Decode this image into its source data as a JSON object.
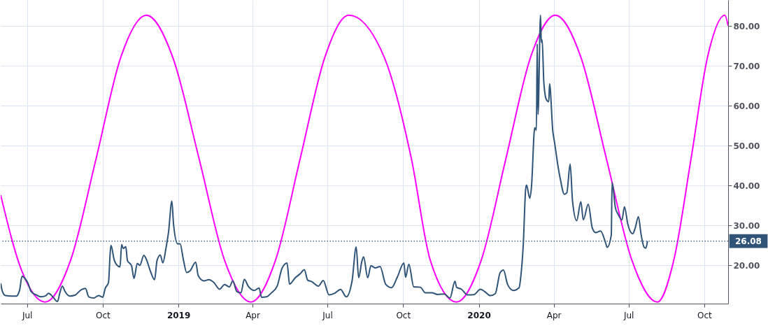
{
  "chart_data": {
    "type": "line",
    "grid": true,
    "xlim": [
      "2018-05-30",
      "2020-10-30"
    ],
    "xticks": [
      {
        "value": "2018-07-01",
        "label": "Jul"
      },
      {
        "value": "2018-10-01",
        "label": "Oct"
      },
      {
        "value": "2019-01-01",
        "label": "2019"
      },
      {
        "value": "2019-04-01",
        "label": "Apr"
      },
      {
        "value": "2019-07-01",
        "label": "Jul"
      },
      {
        "value": "2019-10-01",
        "label": "Oct"
      },
      {
        "value": "2020-01-01",
        "label": "2020"
      },
      {
        "value": "2020-04-01",
        "label": "Apr"
      },
      {
        "value": "2020-07-01",
        "label": "Jul"
      },
      {
        "value": "2020-10-01",
        "label": "Oct"
      }
    ],
    "ylim": [
      10.4,
      86.5
    ],
    "yticks": [
      {
        "value": 20,
        "label": "20.00"
      },
      {
        "value": 30,
        "label": "30.00"
      },
      {
        "value": 40,
        "label": "40.00"
      },
      {
        "value": 50,
        "label": "50.00"
      },
      {
        "value": 60,
        "label": "60.00"
      },
      {
        "value": 70,
        "label": "70.00"
      },
      {
        "value": 80,
        "label": "80.00"
      }
    ],
    "ref_lines": [
      {
        "axis": "y",
        "value": 26.08,
        "label": "26.08",
        "color": "#2f5478",
        "line_style": "dotted"
      }
    ],
    "series": [
      {
        "color": "#ff00ff",
        "x": [
          "2018-05-30",
          "2018-06-25",
          "2018-07-23",
          "2018-08-23",
          "2018-09-23",
          "2018-10-23",
          "2018-11-23",
          "2018-12-25",
          "2019-01-26",
          "2019-02-26",
          "2019-03-30",
          "2019-04-29",
          "2019-05-29",
          "2019-06-28",
          "2019-07-27",
          "2019-09-08",
          "2019-10-11",
          "2019-11-03",
          "2019-12-05",
          "2020-01-04",
          "2020-02-03",
          "2020-03-04",
          "2020-04-03",
          "2020-05-04",
          "2020-06-04",
          "2020-07-05",
          "2020-08-05",
          "2020-08-25",
          "2020-09-15",
          "2020-10-05",
          "2020-10-26",
          "2020-10-30"
        ],
        "values": [
          37.6,
          18.4,
          10.8,
          21.3,
          46.8,
          72.2,
          82.7,
          72.2,
          46.8,
          21.3,
          10.8,
          21.3,
          46.8,
          72.2,
          82.7,
          72.2,
          46.8,
          21.3,
          10.8,
          21.3,
          46.8,
          72.2,
          82.7,
          72.2,
          46.8,
          21.3,
          10.8,
          21.3,
          46.8,
          72.2,
          82.7,
          80.0
        ]
      },
      {
        "color": "#2f5478",
        "x": [
          "2018-05-30",
          "2018-06-01",
          "2018-06-05",
          "2018-06-12",
          "2018-06-18",
          "2018-06-22",
          "2018-06-25",
          "2018-06-28",
          "2018-07-02",
          "2018-07-06",
          "2018-07-12",
          "2018-07-18",
          "2018-07-24",
          "2018-07-27",
          "2018-08-01",
          "2018-08-07",
          "2018-08-10",
          "2018-08-13",
          "2018-08-16",
          "2018-08-22",
          "2018-08-28",
          "2018-09-05",
          "2018-09-10",
          "2018-09-14",
          "2018-09-20",
          "2018-09-26",
          "2018-10-01",
          "2018-10-04",
          "2018-10-08",
          "2018-10-10",
          "2018-10-11",
          "2018-10-15",
          "2018-10-18",
          "2018-10-22",
          "2018-10-24",
          "2018-10-26",
          "2018-10-29",
          "2018-10-31",
          "2018-11-05",
          "2018-11-08",
          "2018-11-12",
          "2018-11-15",
          "2018-11-20",
          "2018-11-23",
          "2018-11-28",
          "2018-12-03",
          "2018-12-06",
          "2018-12-10",
          "2018-12-13",
          "2018-12-17",
          "2018-12-20",
          "2018-12-24",
          "2018-12-26",
          "2018-12-31",
          "2019-01-03",
          "2019-01-07",
          "2019-01-11",
          "2019-01-15",
          "2019-01-22",
          "2019-01-25",
          "2019-02-01",
          "2019-02-07",
          "2019-02-13",
          "2019-02-20",
          "2019-02-26",
          "2019-03-04",
          "2019-03-08",
          "2019-03-13",
          "2019-03-18",
          "2019-03-22",
          "2019-03-27",
          "2019-04-03",
          "2019-04-09",
          "2019-04-12",
          "2019-04-18",
          "2019-04-24",
          "2019-05-01",
          "2019-05-07",
          "2019-05-13",
          "2019-05-16",
          "2019-05-23",
          "2019-05-29",
          "2019-06-03",
          "2019-06-07",
          "2019-06-12",
          "2019-06-20",
          "2019-06-26",
          "2019-07-03",
          "2019-07-10",
          "2019-07-17",
          "2019-07-24",
          "2019-07-31",
          "2019-08-05",
          "2019-08-08",
          "2019-08-12",
          "2019-08-14",
          "2019-08-19",
          "2019-08-23",
          "2019-08-28",
          "2019-09-03",
          "2019-09-10",
          "2019-09-17",
          "2019-09-24",
          "2019-10-02",
          "2019-10-04",
          "2019-10-08",
          "2019-10-14",
          "2019-10-22",
          "2019-10-28",
          "2019-11-05",
          "2019-11-12",
          "2019-11-20",
          "2019-11-27",
          "2019-12-03",
          "2019-12-05",
          "2019-12-11",
          "2019-12-18",
          "2019-12-26",
          "2020-01-03",
          "2020-01-08",
          "2020-01-15",
          "2020-01-21",
          "2020-01-27",
          "2020-01-31",
          "2020-02-05",
          "2020-02-12",
          "2020-02-19",
          "2020-02-21",
          "2020-02-24",
          "2020-02-27",
          "2020-02-28",
          "2020-03-03",
          "2020-03-05",
          "2020-03-09",
          "2020-03-11",
          "2020-03-12",
          "2020-03-13",
          "2020-03-16",
          "2020-03-17",
          "2020-03-18",
          "2020-03-20",
          "2020-03-23",
          "2020-03-26",
          "2020-03-27",
          "2020-03-31",
          "2020-04-02",
          "2020-04-06",
          "2020-04-09",
          "2020-04-14",
          "2020-04-17",
          "2020-04-21",
          "2020-04-24",
          "2020-04-29",
          "2020-05-04",
          "2020-05-07",
          "2020-05-13",
          "2020-05-18",
          "2020-05-22",
          "2020-05-28",
          "2020-06-03",
          "2020-06-05",
          "2020-06-10",
          "2020-06-11",
          "2020-06-15",
          "2020-06-18",
          "2020-06-23",
          "2020-06-26",
          "2020-06-30",
          "2020-07-06",
          "2020-07-09",
          "2020-07-13",
          "2020-07-16",
          "2020-07-20",
          "2020-07-22",
          "2020-07-24"
        ],
        "values": [
          15.5,
          13.5,
          12.4,
          12.3,
          12.3,
          13.8,
          17.3,
          16.8,
          15.6,
          13.4,
          12.6,
          12.1,
          12.4,
          13.0,
          12.2,
          10.9,
          13.2,
          14.8,
          13.5,
          12.3,
          12.5,
          13.9,
          14.2,
          12.1,
          11.8,
          12.4,
          12.0,
          14.2,
          15.7,
          22.96,
          24.98,
          21.3,
          20.1,
          19.6,
          25.2,
          24.2,
          24.7,
          21.2,
          19.9,
          16.7,
          20.5,
          19.98,
          22.5,
          21.5,
          18.5,
          16.4,
          21.2,
          22.6,
          20.6,
          24.5,
          28.4,
          36.1,
          30.4,
          25.4,
          25.4,
          21.4,
          18.2,
          18.6,
          20.8,
          17.4,
          16.1,
          16.4,
          15.7,
          14.0,
          15.2,
          14.6,
          16.1,
          13.4,
          13.1,
          16.5,
          14.7,
          13.7,
          14.3,
          12.0,
          12.1,
          13.1,
          14.8,
          19.3,
          20.55,
          15.3,
          16.9,
          17.9,
          18.9,
          16.3,
          15.9,
          14.8,
          16.2,
          12.6,
          13.0,
          13.97,
          12.1,
          16.1,
          24.6,
          16.9,
          21.1,
          22.1,
          16.9,
          19.9,
          19.35,
          19.7,
          15.2,
          14.4,
          17.05,
          20.56,
          17.0,
          20.28,
          14.6,
          14.5,
          13.1,
          13.1,
          12.7,
          12.8,
          11.8,
          16.0,
          14.5,
          14.0,
          12.6,
          12.65,
          14.0,
          13.45,
          12.4,
          12.9,
          18.2,
          18.8,
          15.2,
          13.7,
          14.4,
          17.1,
          25.0,
          39.2,
          40.1,
          36.8,
          39.6,
          54.5,
          53.9,
          75.5,
          57.8,
          82.69,
          75.9,
          76.5,
          66.0,
          61.6,
          61.0,
          65.5,
          53.5,
          50.9,
          45.2,
          41.7,
          37.8,
          38.2,
          45.4,
          35.9,
          31.2,
          35.97,
          31.4,
          35.3,
          29.3,
          28.2,
          28.6,
          25.7,
          24.5,
          27.6,
          40.8,
          34.4,
          32.9,
          31.4,
          34.7,
          30.4,
          27.9,
          29.3,
          32.2,
          28.0,
          24.5,
          24.3,
          26.08
        ]
      }
    ]
  }
}
